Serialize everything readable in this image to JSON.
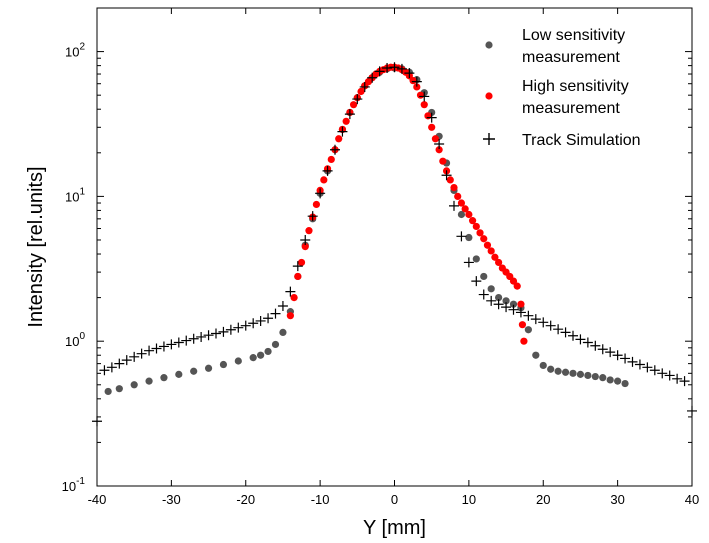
{
  "chart_data": {
    "type": "scatter",
    "title": "",
    "xlabel": "Y [mm]",
    "ylabel": "Intensity [rel.units]",
    "xlim": [
      -40,
      40
    ],
    "ylim": [
      0.1,
      200
    ],
    "yscale": "log",
    "grid": false,
    "legend_position": "top-right",
    "x_ticks": [
      {
        "value": -40,
        "label": "-40"
      },
      {
        "value": -30,
        "label": "-30"
      },
      {
        "value": -20,
        "label": "-20"
      },
      {
        "value": -10,
        "label": "-10"
      },
      {
        "value": 0,
        "label": "0"
      },
      {
        "value": 10,
        "label": "10"
      },
      {
        "value": 20,
        "label": "20"
      },
      {
        "value": 30,
        "label": "30"
      },
      {
        "value": 40,
        "label": "40"
      }
    ],
    "y_ticks": [
      {
        "value": 0.1,
        "base": "10",
        "exp": "-1"
      },
      {
        "value": 1,
        "base": "10",
        "exp": "0"
      },
      {
        "value": 10,
        "base": "10",
        "exp": "1"
      },
      {
        "value": 100,
        "base": "10",
        "exp": "2"
      }
    ],
    "series": [
      {
        "name": "Low sensitivity measurement",
        "legend_lines": [
          "Low sensitivity",
          "measurement"
        ],
        "marker": "dot",
        "color": "#555555",
        "points": [
          [
            -38.5,
            0.45
          ],
          [
            -37,
            0.47
          ],
          [
            -35,
            0.5
          ],
          [
            -33,
            0.53
          ],
          [
            -31,
            0.56
          ],
          [
            -29,
            0.59
          ],
          [
            -27,
            0.62
          ],
          [
            -25,
            0.65
          ],
          [
            -23,
            0.69
          ],
          [
            -21,
            0.73
          ],
          [
            -19,
            0.77
          ],
          [
            -18,
            0.8
          ],
          [
            -17,
            0.85
          ],
          [
            -16,
            0.95
          ],
          [
            -15,
            1.15
          ],
          [
            -14,
            1.6
          ],
          [
            -13,
            2.8
          ],
          [
            -12,
            4.6
          ],
          [
            -11,
            7.0
          ],
          [
            -10,
            10.5
          ],
          [
            -9,
            15
          ],
          [
            -8,
            21
          ],
          [
            -7,
            29
          ],
          [
            -6,
            38
          ],
          [
            -5,
            48
          ],
          [
            -4,
            58
          ],
          [
            -3,
            66
          ],
          [
            -2,
            72
          ],
          [
            -1,
            76
          ],
          [
            0,
            77
          ],
          [
            1,
            76
          ],
          [
            2,
            72
          ],
          [
            3,
            64
          ],
          [
            4,
            52
          ],
          [
            5,
            38
          ],
          [
            6,
            26
          ],
          [
            7,
            17
          ],
          [
            8,
            11
          ],
          [
            9,
            7.5
          ],
          [
            10,
            5.2
          ],
          [
            11,
            3.7
          ],
          [
            12,
            2.8
          ],
          [
            13,
            2.3
          ],
          [
            14,
            2.0
          ],
          [
            15,
            1.9
          ],
          [
            16,
            1.8
          ],
          [
            17,
            1.7
          ],
          [
            18,
            1.2
          ],
          [
            19,
            0.8
          ],
          [
            20,
            0.68
          ],
          [
            21,
            0.64
          ],
          [
            22,
            0.62
          ],
          [
            23,
            0.61
          ],
          [
            24,
            0.6
          ],
          [
            25,
            0.59
          ],
          [
            26,
            0.58
          ],
          [
            27,
            0.57
          ],
          [
            28,
            0.56
          ],
          [
            29,
            0.54
          ],
          [
            30,
            0.53
          ],
          [
            31,
            0.51
          ]
        ]
      },
      {
        "name": "High sensitivity measurement",
        "legend_lines": [
          "High sensitivity",
          "measurement"
        ],
        "marker": "dot",
        "color": "#ff0000",
        "points": [
          [
            -14,
            1.5
          ],
          [
            -13.5,
            2.0
          ],
          [
            -13,
            2.8
          ],
          [
            -12.5,
            3.5
          ],
          [
            -12,
            4.5
          ],
          [
            -11.5,
            5.8
          ],
          [
            -11,
            7.2
          ],
          [
            -10.5,
            8.8
          ],
          [
            -10,
            11
          ],
          [
            -9.5,
            13
          ],
          [
            -9,
            15.5
          ],
          [
            -8.5,
            18
          ],
          [
            -8,
            21
          ],
          [
            -7.5,
            25
          ],
          [
            -7,
            29
          ],
          [
            -6.5,
            33
          ],
          [
            -6,
            38
          ],
          [
            -5.5,
            43
          ],
          [
            -5,
            48
          ],
          [
            -4.5,
            53
          ],
          [
            -4,
            58
          ],
          [
            -3.5,
            62
          ],
          [
            -3,
            66
          ],
          [
            -2.5,
            70
          ],
          [
            -2,
            73
          ],
          [
            -1.5,
            75
          ],
          [
            -1,
            77
          ],
          [
            -0.5,
            78
          ],
          [
            0,
            78
          ],
          [
            0.5,
            77
          ],
          [
            1,
            75
          ],
          [
            1.5,
            72
          ],
          [
            2,
            68
          ],
          [
            2.5,
            63
          ],
          [
            3,
            57
          ],
          [
            3.5,
            50
          ],
          [
            4,
            43
          ],
          [
            4.5,
            36
          ],
          [
            5,
            30
          ],
          [
            5.5,
            25
          ],
          [
            6,
            21
          ],
          [
            6.5,
            17.5
          ],
          [
            7,
            15
          ],
          [
            7.5,
            13
          ],
          [
            8,
            11.5
          ],
          [
            8.5,
            10
          ],
          [
            9,
            9
          ],
          [
            9.5,
            8.2
          ],
          [
            10,
            7.5
          ],
          [
            10.5,
            6.8
          ],
          [
            11,
            6.2
          ],
          [
            11.5,
            5.6
          ],
          [
            12,
            5.1
          ],
          [
            12.5,
            4.6
          ],
          [
            13,
            4.2
          ],
          [
            13.5,
            3.8
          ],
          [
            14,
            3.5
          ],
          [
            14.5,
            3.2
          ],
          [
            15,
            3.0
          ],
          [
            15.5,
            2.8
          ],
          [
            16,
            2.6
          ],
          [
            16.5,
            2.4
          ],
          [
            17,
            1.8
          ],
          [
            17.2,
            1.3
          ],
          [
            17.4,
            1.0
          ]
        ]
      },
      {
        "name": "Track Simulation",
        "legend_lines": [
          "Track Simulation"
        ],
        "marker": "plus",
        "color": "#000000",
        "points": [
          [
            -40,
            0.28
          ],
          [
            -39,
            0.63
          ],
          [
            -38,
            0.66
          ],
          [
            -37,
            0.7
          ],
          [
            -36,
            0.74
          ],
          [
            -35,
            0.78
          ],
          [
            -34,
            0.82
          ],
          [
            -33,
            0.86
          ],
          [
            -32,
            0.89
          ],
          [
            -31,
            0.92
          ],
          [
            -30,
            0.95
          ],
          [
            -29,
            0.98
          ],
          [
            -28,
            1.01
          ],
          [
            -27,
            1.04
          ],
          [
            -26,
            1.07
          ],
          [
            -25,
            1.1
          ],
          [
            -24,
            1.13
          ],
          [
            -23,
            1.16
          ],
          [
            -22,
            1.2
          ],
          [
            -21,
            1.24
          ],
          [
            -20,
            1.28
          ],
          [
            -19,
            1.33
          ],
          [
            -18,
            1.38
          ],
          [
            -17,
            1.44
          ],
          [
            -16,
            1.55
          ],
          [
            -15,
            1.75
          ],
          [
            -14,
            2.2
          ],
          [
            -13,
            3.3
          ],
          [
            -12,
            5.0
          ],
          [
            -11,
            7.3
          ],
          [
            -10,
            10.5
          ],
          [
            -9,
            15
          ],
          [
            -8,
            21
          ],
          [
            -7,
            28
          ],
          [
            -6,
            37
          ],
          [
            -5,
            47
          ],
          [
            -4,
            57
          ],
          [
            -3,
            66
          ],
          [
            -2,
            73
          ],
          [
            -1,
            77
          ],
          [
            0,
            78
          ],
          [
            1,
            76
          ],
          [
            2,
            71
          ],
          [
            3,
            62
          ],
          [
            4,
            49
          ],
          [
            5,
            35
          ],
          [
            6,
            23
          ],
          [
            7,
            14
          ],
          [
            8,
            8.6
          ],
          [
            9,
            5.3
          ],
          [
            10,
            3.5
          ],
          [
            11,
            2.6
          ],
          [
            12,
            2.1
          ],
          [
            13,
            1.9
          ],
          [
            14,
            1.8
          ],
          [
            15,
            1.72
          ],
          [
            16,
            1.65
          ],
          [
            17,
            1.58
          ],
          [
            18,
            1.5
          ],
          [
            19,
            1.42
          ],
          [
            20,
            1.35
          ],
          [
            21,
            1.28
          ],
          [
            22,
            1.21
          ],
          [
            23,
            1.15
          ],
          [
            24,
            1.09
          ],
          [
            25,
            1.03
          ],
          [
            26,
            0.98
          ],
          [
            27,
            0.93
          ],
          [
            28,
            0.88
          ],
          [
            29,
            0.84
          ],
          [
            30,
            0.8
          ],
          [
            31,
            0.76
          ],
          [
            32,
            0.72
          ],
          [
            33,
            0.69
          ],
          [
            34,
            0.66
          ],
          [
            35,
            0.63
          ],
          [
            36,
            0.6
          ],
          [
            37,
            0.58
          ],
          [
            38,
            0.55
          ],
          [
            39,
            0.53
          ],
          [
            40,
            0.33
          ]
        ]
      }
    ]
  }
}
